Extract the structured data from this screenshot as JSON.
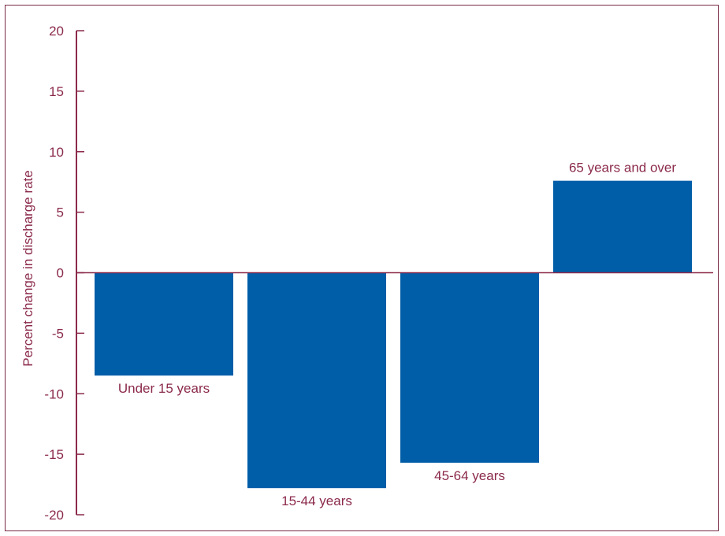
{
  "colors": {
    "axis": "#8b2a4a",
    "text": "#8b2a4a",
    "bar": "#005da8",
    "frame": "#7a2b45"
  },
  "chart_data": {
    "type": "bar",
    "categories": [
      "Under 15 years",
      "15-44 years",
      "45-64 years",
      "65 years and over"
    ],
    "values": [
      -8.5,
      -17.8,
      -15.7,
      7.6
    ],
    "title": "",
    "xlabel": "",
    "ylabel": "Percent change in discharge rate",
    "ylim": [
      -20,
      20
    ],
    "yticks": [
      20,
      15,
      10,
      5,
      0,
      -5,
      -10,
      -15,
      -20
    ],
    "grid": false,
    "legend": "none"
  }
}
